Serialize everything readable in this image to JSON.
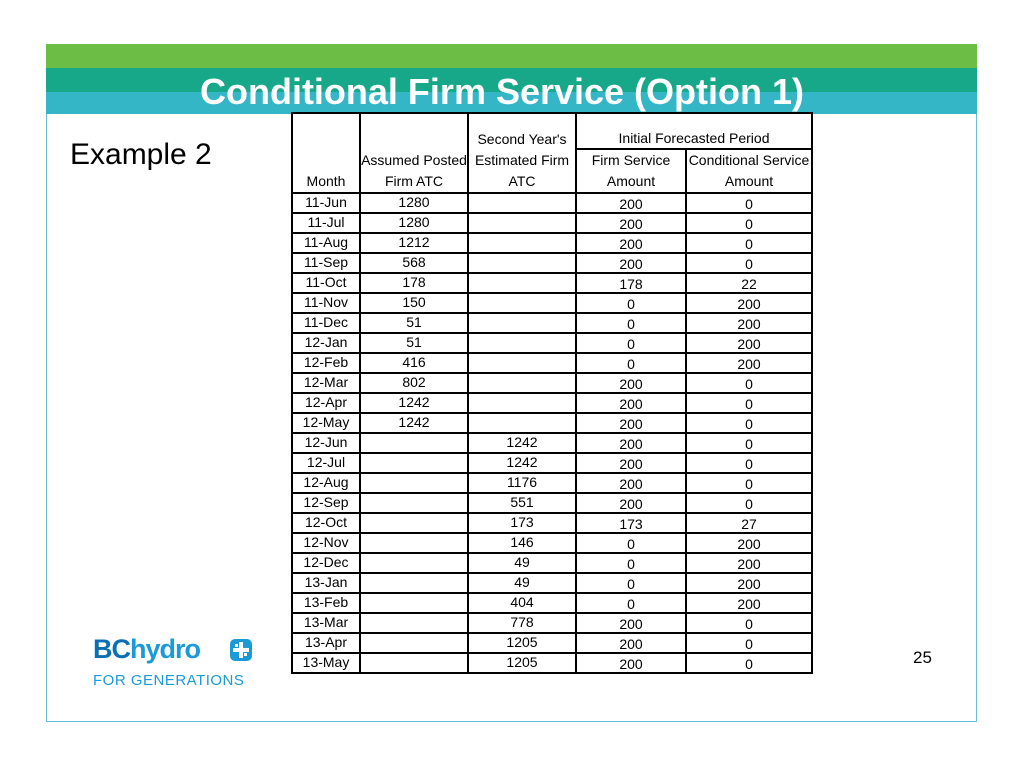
{
  "slide": {
    "title": "Conditional Firm Service (Option 1)",
    "subtitle": "Example 2",
    "page_number": "25"
  },
  "logo": {
    "brand_bc": "BC",
    "brand_hydro": "hydro",
    "tagline": "FOR GENERATIONS",
    "icon": "bchydro-lightning-icon",
    "colors": {
      "dark_blue": "#0a6fb5",
      "light_blue": "#1b9ad8"
    }
  },
  "header_colors": {
    "green": "#6bbd45",
    "teal": "#17a889",
    "cyan": "#34b6c7"
  },
  "table": {
    "headers": {
      "month": "Month",
      "posted": "Assumed Posted Firm ATC",
      "second": "Second Year's Estimated Firm ATC",
      "group": "Initial Forecasted Period",
      "firm": "Firm Service Amount",
      "conditional": "Conditional Service Amount"
    },
    "rows": [
      {
        "month": "11-Jun",
        "posted": "1280",
        "second": "",
        "firm": "200",
        "cond": "0"
      },
      {
        "month": "11-Jul",
        "posted": "1280",
        "second": "",
        "firm": "200",
        "cond": "0"
      },
      {
        "month": "11-Aug",
        "posted": "1212",
        "second": "",
        "firm": "200",
        "cond": "0"
      },
      {
        "month": "11-Sep",
        "posted": "568",
        "second": "",
        "firm": "200",
        "cond": "0"
      },
      {
        "month": "11-Oct",
        "posted": "178",
        "second": "",
        "firm": "178",
        "cond": "22"
      },
      {
        "month": "11-Nov",
        "posted": "150",
        "second": "",
        "firm": "0",
        "cond": "200"
      },
      {
        "month": "11-Dec",
        "posted": "51",
        "second": "",
        "firm": "0",
        "cond": "200"
      },
      {
        "month": "12-Jan",
        "posted": "51",
        "second": "",
        "firm": "0",
        "cond": "200"
      },
      {
        "month": "12-Feb",
        "posted": "416",
        "second": "",
        "firm": "0",
        "cond": "200"
      },
      {
        "month": "12-Mar",
        "posted": "802",
        "second": "",
        "firm": "200",
        "cond": "0"
      },
      {
        "month": "12-Apr",
        "posted": "1242",
        "second": "",
        "firm": "200",
        "cond": "0"
      },
      {
        "month": "12-May",
        "posted": "1242",
        "second": "",
        "firm": "200",
        "cond": "0"
      },
      {
        "month": "12-Jun",
        "posted": "",
        "second": "1242",
        "firm": "200",
        "cond": "0"
      },
      {
        "month": "12-Jul",
        "posted": "",
        "second": "1242",
        "firm": "200",
        "cond": "0"
      },
      {
        "month": "12-Aug",
        "posted": "",
        "second": "1176",
        "firm": "200",
        "cond": "0"
      },
      {
        "month": "12-Sep",
        "posted": "",
        "second": "551",
        "firm": "200",
        "cond": "0"
      },
      {
        "month": "12-Oct",
        "posted": "",
        "second": "173",
        "firm": "173",
        "cond": "27"
      },
      {
        "month": "12-Nov",
        "posted": "",
        "second": "146",
        "firm": "0",
        "cond": "200"
      },
      {
        "month": "12-Dec",
        "posted": "",
        "second": "49",
        "firm": "0",
        "cond": "200"
      },
      {
        "month": "13-Jan",
        "posted": "",
        "second": "49",
        "firm": "0",
        "cond": "200"
      },
      {
        "month": "13-Feb",
        "posted": "",
        "second": "404",
        "firm": "0",
        "cond": "200"
      },
      {
        "month": "13-Mar",
        "posted": "",
        "second": "778",
        "firm": "200",
        "cond": "0"
      },
      {
        "month": "13-Apr",
        "posted": "",
        "second": "1205",
        "firm": "200",
        "cond": "0"
      },
      {
        "month": "13-May",
        "posted": "",
        "second": "1205",
        "firm": "200",
        "cond": "0"
      }
    ]
  }
}
